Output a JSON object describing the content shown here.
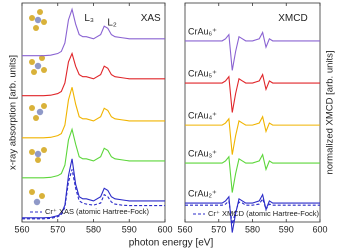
{
  "chart_data": [
    {
      "type": "line",
      "ylabel": "x-ray absorption [arb. units]",
      "xlabel": "photon energy [eV]",
      "annotations": [
        "L₃",
        "L₂",
        "XAS"
      ],
      "x": [
        560,
        562,
        564,
        566,
        568,
        570,
        571,
        572,
        573,
        574,
        575,
        576,
        577,
        578,
        580,
        582,
        583,
        584,
        585,
        586,
        588,
        590,
        592,
        594,
        596,
        598,
        600
      ],
      "xlim": [
        560,
        600
      ],
      "xticks": [
        560,
        570,
        580,
        590,
        600
      ],
      "ylim": [
        0,
        10.4
      ],
      "series": [
        {
          "color": "#8a63d2",
          "values": [
            7.9,
            7.9,
            7.9,
            7.9,
            7.92,
            8.0,
            8.1,
            8.5,
            9.6,
            10.1,
            9.4,
            8.9,
            8.8,
            8.8,
            8.7,
            8.9,
            9.3,
            9.2,
            8.9,
            8.8,
            8.75,
            8.7,
            8.7,
            8.7,
            8.7,
            8.7,
            8.7
          ]
        },
        {
          "color": "#e0262a",
          "values": [
            6.0,
            6.0,
            6.0,
            6.0,
            6.02,
            6.1,
            6.2,
            6.6,
            7.6,
            8.0,
            7.4,
            7.0,
            6.9,
            6.9,
            6.8,
            7.0,
            7.4,
            7.3,
            7.0,
            6.9,
            6.85,
            6.8,
            6.8,
            6.8,
            6.8,
            6.8,
            6.8
          ]
        },
        {
          "color": "#f0b400",
          "values": [
            4.0,
            4.0,
            4.0,
            4.0,
            4.02,
            4.1,
            4.2,
            4.6,
            5.8,
            6.4,
            5.6,
            5.0,
            4.9,
            4.9,
            4.8,
            5.0,
            5.4,
            5.3,
            5.0,
            4.9,
            4.85,
            4.8,
            4.8,
            4.8,
            4.8,
            4.8,
            4.8
          ]
        },
        {
          "color": "#5cd63a",
          "values": [
            2.1,
            2.1,
            2.1,
            2.1,
            2.12,
            2.2,
            2.3,
            2.7,
            3.9,
            4.4,
            3.7,
            3.1,
            3.0,
            3.0,
            2.9,
            3.1,
            3.5,
            3.4,
            3.1,
            3.0,
            2.95,
            2.9,
            2.9,
            2.9,
            2.9,
            2.9,
            2.9
          ]
        },
        {
          "color": "#2b2bc8",
          "values": [
            0.2,
            0.2,
            0.2,
            0.2,
            0.22,
            0.3,
            0.4,
            0.8,
            2.2,
            3.0,
            1.8,
            1.2,
            1.1,
            1.1,
            1.0,
            1.2,
            1.6,
            1.5,
            1.2,
            1.1,
            1.05,
            1.0,
            1.0,
            1.0,
            1.0,
            1.0,
            1.0
          ]
        },
        {
          "name": "Cr⁺ XAS (atomic Hartree-Fock)",
          "color": "#2b2bc8",
          "dashed": true,
          "values": [
            0.15,
            0.15,
            0.15,
            0.15,
            0.17,
            0.25,
            0.35,
            0.7,
            1.9,
            2.5,
            1.6,
            1.0,
            0.9,
            0.85,
            0.8,
            0.9,
            1.3,
            1.2,
            0.95,
            0.85,
            0.8,
            0.78,
            0.78,
            0.78,
            0.78,
            0.78,
            0.78
          ]
        }
      ]
    },
    {
      "type": "line",
      "ylabel": "normalized XMCD [arb. units]",
      "annotations": [
        "XMCD"
      ],
      "x": [
        560,
        562,
        564,
        566,
        568,
        570,
        571,
        572,
        573,
        574,
        575,
        576,
        577,
        578,
        580,
        582,
        583,
        584,
        585,
        586,
        588,
        590,
        592,
        594,
        596,
        598,
        600
      ],
      "xlim": [
        560,
        600
      ],
      "xticks": [
        560,
        570,
        580,
        590,
        600
      ],
      "ylim": [
        0,
        10.4
      ],
      "series": [
        {
          "name": "CrAu₆⁺",
          "color": "#8a63d2",
          "values": [
            8.6,
            8.6,
            8.6,
            8.6,
            8.6,
            8.6,
            8.6,
            8.7,
            8.9,
            7.2,
            8.1,
            8.8,
            8.7,
            8.6,
            8.6,
            8.7,
            9.0,
            8.3,
            8.7,
            8.6,
            8.6,
            8.6,
            8.6,
            8.6,
            8.6,
            8.6,
            8.6
          ]
        },
        {
          "name": "CrAu₅⁺",
          "color": "#e0262a",
          "values": [
            6.6,
            6.6,
            6.6,
            6.6,
            6.6,
            6.6,
            6.6,
            6.7,
            6.9,
            5.2,
            6.1,
            6.8,
            6.7,
            6.6,
            6.6,
            6.7,
            7.0,
            6.3,
            6.7,
            6.6,
            6.6,
            6.6,
            6.6,
            6.6,
            6.6,
            6.6,
            6.6
          ]
        },
        {
          "name": "CrAu₄⁺",
          "color": "#f0b400",
          "values": [
            4.6,
            4.6,
            4.6,
            4.6,
            4.6,
            4.6,
            4.6,
            4.7,
            4.9,
            3.2,
            4.1,
            4.8,
            4.7,
            4.6,
            4.6,
            4.7,
            5.0,
            4.3,
            4.7,
            4.6,
            4.6,
            4.6,
            4.6,
            4.6,
            4.6,
            4.6,
            4.6
          ]
        },
        {
          "name": "CrAu₃⁺",
          "color": "#5cd63a",
          "values": [
            2.8,
            2.8,
            2.8,
            2.8,
            2.8,
            2.8,
            2.8,
            2.9,
            3.1,
            1.4,
            2.3,
            3.0,
            2.9,
            2.8,
            2.8,
            2.9,
            3.2,
            2.5,
            2.9,
            2.8,
            2.8,
            2.8,
            2.8,
            2.8,
            2.8,
            2.8,
            2.8
          ]
        },
        {
          "name": "CrAu₂⁺",
          "color": "#2b2bc8",
          "values": [
            0.9,
            0.9,
            0.9,
            0.9,
            0.9,
            0.9,
            0.9,
            1.0,
            1.2,
            -0.5,
            0.4,
            1.1,
            1.0,
            0.9,
            0.9,
            1.0,
            1.3,
            0.6,
            1.0,
            0.9,
            0.9,
            0.9,
            0.9,
            0.9,
            0.9,
            0.9,
            0.9
          ]
        },
        {
          "name": "Cr⁺ XMCD (atomic Hartree-Fock)",
          "color": "#2b2bc8",
          "dashed": true,
          "values": [
            0.8,
            0.8,
            0.8,
            0.8,
            0.8,
            0.8,
            0.8,
            0.85,
            1.0,
            -0.1,
            0.5,
            0.95,
            0.9,
            0.8,
            0.8,
            0.85,
            1.1,
            0.6,
            0.85,
            0.8,
            0.8,
            0.8,
            0.8,
            0.8,
            0.8,
            0.8,
            0.8
          ]
        }
      ]
    }
  ]
}
